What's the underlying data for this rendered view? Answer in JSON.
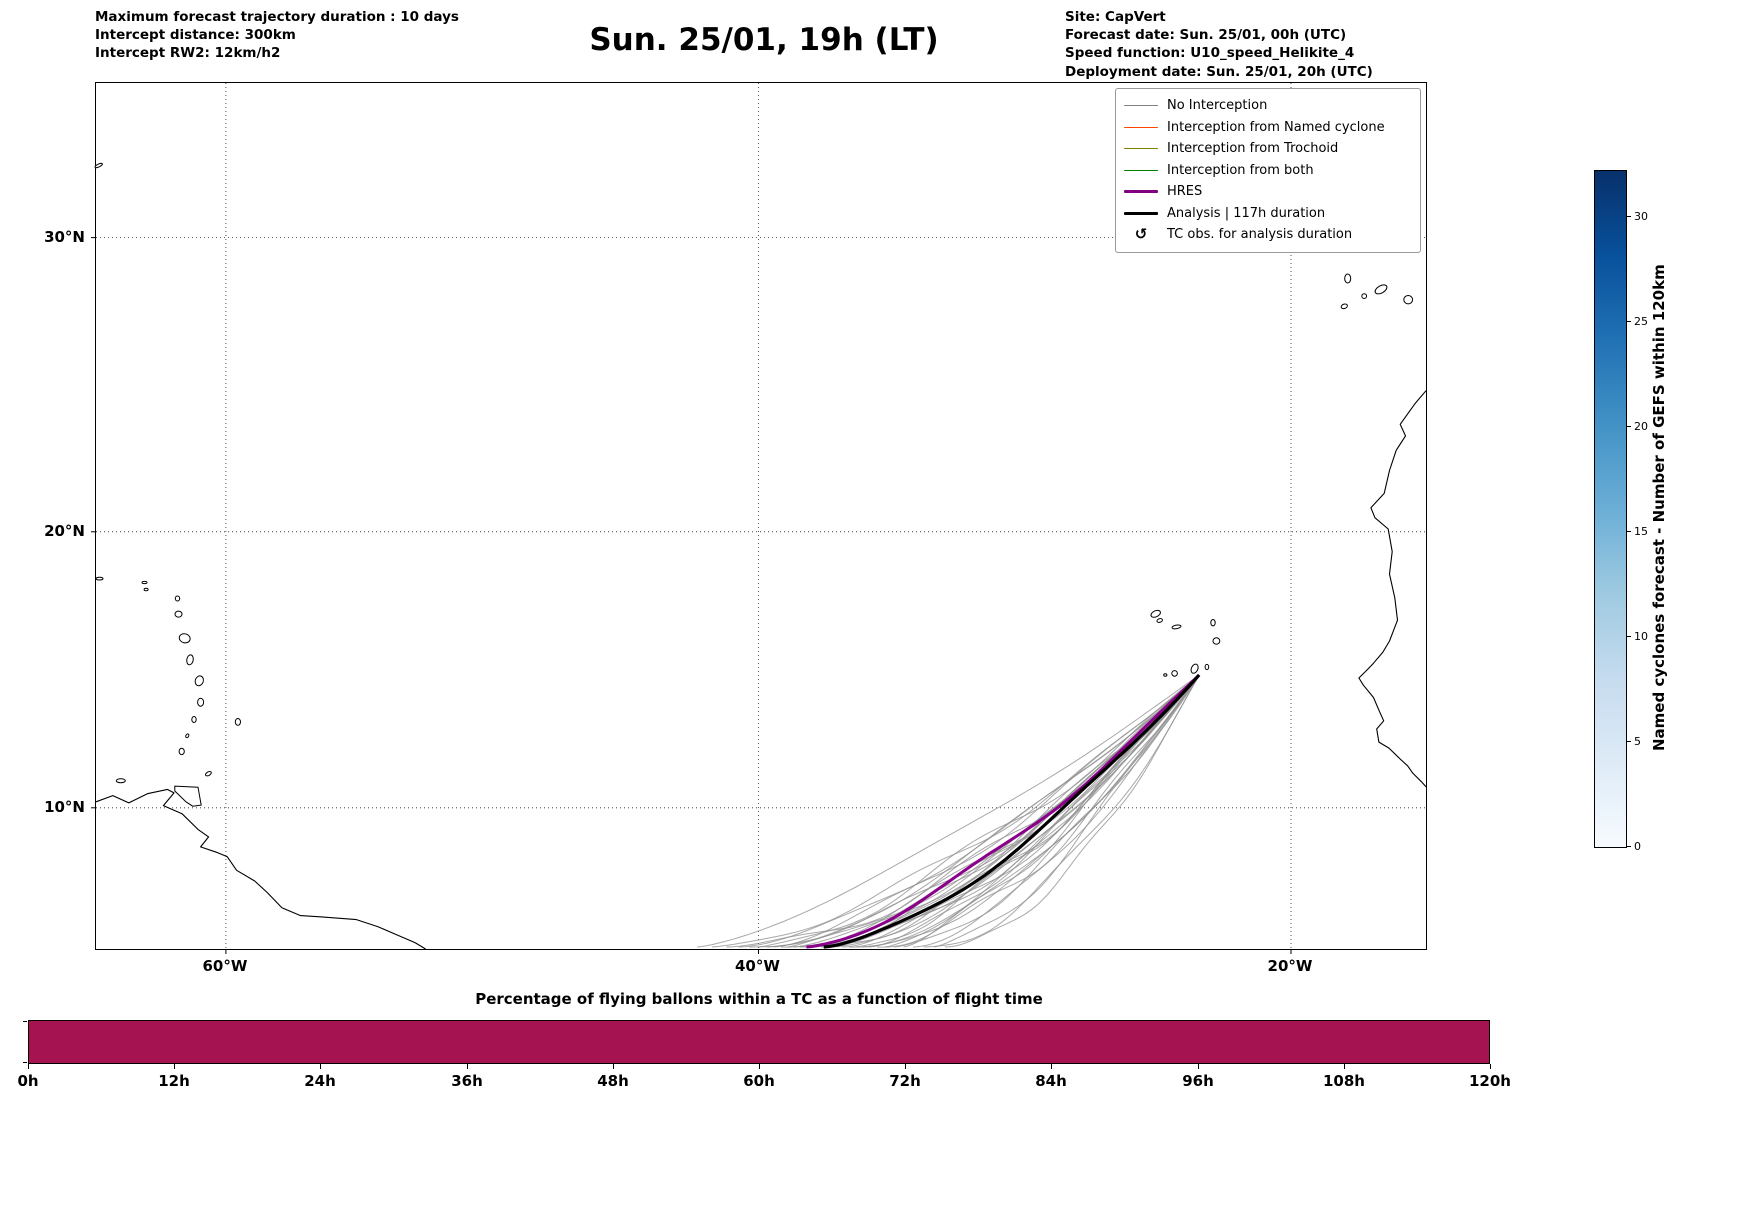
{
  "header": {
    "left_lines": [
      "Maximum forecast trajectory duration : 10 days",
      "Intercept distance: 300km",
      "Intercept RW2: 12km/h2"
    ],
    "title": "Sun. 25/01, 19h (LT)",
    "right_lines": [
      "Site: CapVert",
      "Forecast date: Sun. 25/01, 00h (UTC)",
      "Speed function: U10_speed_Helikite_4",
      "Deployment date: Sun. 25/01, 20h (UTC)"
    ]
  },
  "legend": {
    "items": [
      {
        "label": "No Interception",
        "swatch": "line",
        "color": "#808080",
        "thickness": 1.5
      },
      {
        "label": "Interception from Named cyclone",
        "swatch": "line",
        "color": "#ff4500",
        "thickness": 1.5
      },
      {
        "label": "Interception from Trochoid",
        "swatch": "line",
        "color": "#808000",
        "thickness": 1.5
      },
      {
        "label": "Interception from both",
        "swatch": "line",
        "color": "#008000",
        "thickness": 1.5
      },
      {
        "label": "HRES",
        "swatch": "line",
        "color": "#800080",
        "thickness": 3.5
      },
      {
        "label": "Analysis | 117h duration",
        "swatch": "line",
        "color": "#000000",
        "thickness": 3.5
      },
      {
        "label": "TC obs. for analysis duration",
        "swatch": "symbol",
        "symbol": "↺",
        "color": "#000000"
      }
    ]
  },
  "map_axes": {
    "lat_ticks": [
      {
        "label": "30°N",
        "value": 30
      },
      {
        "label": "20°N",
        "value": 20
      },
      {
        "label": "10°N",
        "value": 10
      }
    ],
    "lon_ticks": [
      {
        "label": "60°W",
        "value": -60
      },
      {
        "label": "40°W",
        "value": -40
      },
      {
        "label": "20°W",
        "value": -20
      }
    ]
  },
  "colorbar": {
    "label": "Named cyclones forecast - Number of GEFS within 120km",
    "ticks": [
      0,
      5,
      10,
      15,
      20,
      25,
      30
    ],
    "vmax": 32.2,
    "colors_top_to_bottom": [
      "#08306b",
      "#08519c",
      "#2171b5",
      "#4292c6",
      "#6baed6",
      "#9ecae1",
      "#c6dbef",
      "#deebf7",
      "#f7fbff"
    ]
  },
  "bottom_chart": {
    "title": "Percentage of flying ballons within a TC as a function of flight time",
    "x_tick_labels": [
      "0h",
      "12h",
      "24h",
      "36h",
      "48h",
      "60h",
      "72h",
      "84h",
      "96h",
      "108h",
      "120h"
    ],
    "bar_color": "#a51350",
    "percent_full": 100
  },
  "chart_data": {
    "type": "map-trajectories",
    "title": "Sun. 25/01, 19h (LT)",
    "projection": "mercator",
    "map_extent": {
      "lon_min": -64.88,
      "lon_max": -14.93,
      "lat_min": 4.74,
      "lat_max": 34.9
    },
    "deployment_site": {
      "name": "CapVert",
      "lon": -23.45,
      "lat": 14.87
    },
    "gefs_ensemble": {
      "classification": "No Interception",
      "color": "#8f8f8f",
      "start": {
        "lon": -23.45,
        "lat": 14.87
      },
      "end_lat": 4.8,
      "end_lons": [
        -42.3,
        -41.75,
        -41.2,
        -40.75,
        -40.35,
        -40.0,
        -39.7,
        -39.42,
        -39.15,
        -38.9,
        -38.68,
        -38.45,
        -38.25,
        -38.05,
        -37.85,
        -37.65,
        -37.45,
        -37.25,
        -37.05,
        -36.85,
        -36.6,
        -36.35,
        -36.1,
        -35.85,
        -35.55,
        -35.25,
        -34.9,
        -34.55,
        -34.2,
        -33.8,
        -33.4,
        -33.0
      ]
    },
    "hres": {
      "color": "#8b008b",
      "end_lon": -38.2
    },
    "analysis": {
      "color": "#000000",
      "duration_hours": 117,
      "end_lon": -37.55
    },
    "flight_bar": {
      "type": "bar",
      "x_hours": [
        0,
        120
      ],
      "percent_within_tc": [
        100,
        100
      ]
    },
    "geo": {
      "africa_coast": [
        [
          -14.93,
          24.9
        ],
        [
          -15.35,
          24.45
        ],
        [
          -15.9,
          23.75
        ],
        [
          -15.7,
          23.35
        ],
        [
          -16.05,
          22.85
        ],
        [
          -16.3,
          22.15
        ],
        [
          -16.5,
          21.35
        ],
        [
          -17.0,
          20.85
        ],
        [
          -16.85,
          20.5
        ],
        [
          -16.35,
          20.1
        ],
        [
          -16.2,
          19.3
        ],
        [
          -16.3,
          18.5
        ],
        [
          -16.1,
          17.65
        ],
        [
          -16.0,
          16.85
        ],
        [
          -16.3,
          16.1
        ],
        [
          -16.55,
          15.7
        ],
        [
          -16.9,
          15.3
        ],
        [
          -17.15,
          15.05
        ],
        [
          -17.45,
          14.76
        ],
        [
          -17.28,
          14.5
        ],
        [
          -16.9,
          14.05
        ],
        [
          -16.68,
          13.55
        ],
        [
          -16.52,
          13.2
        ],
        [
          -16.78,
          12.9
        ],
        [
          -16.7,
          12.42
        ],
        [
          -16.32,
          12.2
        ],
        [
          -15.92,
          11.82
        ],
        [
          -15.62,
          11.55
        ],
        [
          -15.42,
          11.27
        ],
        [
          -15.1,
          10.96
        ],
        [
          -14.93,
          10.78
        ]
      ],
      "south_america_coast": [
        [
          -64.88,
          10.22
        ],
        [
          -64.25,
          10.45
        ],
        [
          -63.65,
          10.18
        ],
        [
          -62.95,
          10.52
        ],
        [
          -62.2,
          10.68
        ],
        [
          -61.95,
          10.55
        ],
        [
          -62.35,
          10.08
        ],
        [
          -61.65,
          9.78
        ],
        [
          -61.05,
          9.2
        ],
        [
          -60.65,
          8.92
        ],
        [
          -60.95,
          8.55
        ],
        [
          -60.35,
          8.35
        ],
        [
          -59.95,
          8.18
        ],
        [
          -59.6,
          7.68
        ],
        [
          -58.92,
          7.28
        ],
        [
          -58.45,
          6.85
        ],
        [
          -57.9,
          6.28
        ],
        [
          -57.2,
          5.99
        ],
        [
          -56.4,
          5.94
        ],
        [
          -55.1,
          5.84
        ],
        [
          -54.3,
          5.58
        ],
        [
          -53.6,
          5.28
        ],
        [
          -52.9,
          4.98
        ],
        [
          -52.5,
          4.74
        ]
      ],
      "trinidad": [
        [
          -61.92,
          10.8
        ],
        [
          -61.05,
          10.76
        ],
        [
          -60.93,
          10.1
        ],
        [
          -61.25,
          10.06
        ],
        [
          -61.5,
          10.22
        ],
        [
          -61.92,
          10.62
        ]
      ],
      "islands": [
        [
          "bermuda",
          -64.78,
          32.32,
          4,
          1.4,
          -25
        ],
        [
          "virgin-islands",
          -64.75,
          18.34,
          3.5,
          1.4,
          0
        ],
        [
          "anguilla",
          -63.06,
          18.2,
          2.5,
          1.1,
          0
        ],
        [
          "st-martin",
          -63.0,
          17.95,
          2,
          1.3,
          0
        ],
        [
          "barbuda",
          -61.82,
          17.63,
          2.2,
          2.5,
          0
        ],
        [
          "antigua",
          -61.78,
          17.07,
          3.5,
          3,
          0
        ],
        [
          "guadeloupe",
          -61.55,
          16.2,
          5.5,
          4.5,
          15
        ],
        [
          "dominica",
          -61.35,
          15.42,
          3.2,
          5,
          10
        ],
        [
          "martinique",
          -61.0,
          14.66,
          4,
          5,
          20
        ],
        [
          "st-lucia",
          -60.95,
          13.88,
          3,
          4,
          0
        ],
        [
          "st-vincent",
          -61.2,
          13.25,
          2.2,
          3,
          0
        ],
        [
          "grenadines",
          -61.45,
          12.65,
          1.4,
          2,
          30
        ],
        [
          "grenada",
          -61.66,
          12.08,
          2.6,
          3.2,
          0
        ],
        [
          "barbados",
          -59.55,
          13.16,
          2.6,
          3.4,
          0
        ],
        [
          "tobago",
          -60.66,
          11.26,
          3.2,
          1.8,
          -30
        ],
        [
          "margarita",
          -63.95,
          11.0,
          4.5,
          2,
          0
        ],
        [
          "la-palma",
          -17.87,
          28.66,
          3,
          4.5,
          0
        ],
        [
          "el-hierro",
          -18.0,
          27.74,
          3.2,
          2.2,
          -20
        ],
        [
          "la-gomera",
          -17.25,
          28.08,
          2.4,
          2.4,
          0
        ],
        [
          "tenerife",
          -16.62,
          28.3,
          6.5,
          3.6,
          -30
        ],
        [
          "gran-canaria",
          -15.6,
          27.96,
          4.4,
          4.2,
          0
        ],
        [
          "santo-antao",
          -25.08,
          17.08,
          5,
          3,
          -25
        ],
        [
          "sao-vicente",
          -24.93,
          16.84,
          2.8,
          1.8,
          -15
        ],
        [
          "sao-nicolau",
          -24.3,
          16.61,
          4.5,
          1.8,
          -10
        ],
        [
          "sal",
          -22.93,
          16.76,
          2.2,
          3.2,
          0
        ],
        [
          "boa-vista",
          -22.8,
          16.1,
          3.4,
          3.2,
          0
        ],
        [
          "maio",
          -23.16,
          15.16,
          1.8,
          2.6,
          0
        ],
        [
          "santiago",
          -23.62,
          15.1,
          3.2,
          4.8,
          25
        ],
        [
          "fogo",
          -24.37,
          14.93,
          2.8,
          2.8,
          0
        ],
        [
          "brava",
          -24.72,
          14.87,
          1.6,
          1.3,
          0
        ]
      ]
    }
  }
}
